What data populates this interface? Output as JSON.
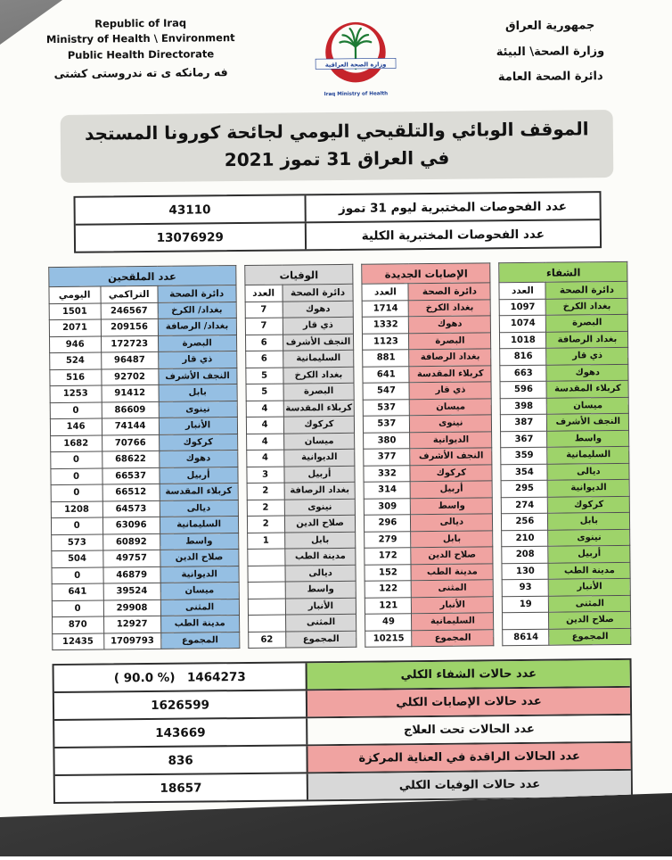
{
  "colors": {
    "green": "#9ed36a",
    "pink": "#f0a3a1",
    "gray": "#d8d8d8",
    "blue": "#95bfe3",
    "white": "#fcfcf9"
  },
  "header": {
    "left": {
      "lines": [
        "Republic of Iraq",
        "Ministry of Health \\ Environment",
        "Public Health Directorate"
      ],
      "kurdish": "فه رمانكه ى ته ندروستى كشتى"
    },
    "logo": {
      "arabic": "وزارة الصحة العراقية",
      "english": "Iraq Ministry of Health"
    },
    "right": {
      "lines": [
        "جمهورية العراق",
        "وزارة الصحة\\ البيئة",
        "دائرة الصحة العامة"
      ]
    }
  },
  "title": {
    "line1": "الموقف الوبائي والتلقيحي اليومي لجائحة كورونا المستجد",
    "line2": "في العراق 31  تموز 2021"
  },
  "tests": [
    {
      "label": "عدد الفحوصات المختبرية  ليوم 31 تموز",
      "value": "43110"
    },
    {
      "label": "عدد الفحوصات المختبرية الكلية",
      "value": "13076929"
    }
  ],
  "tables": {
    "recovery": {
      "title": "الشفاء",
      "name_header": "دائرة الصحة",
      "value_header": "العدد",
      "rows": [
        [
          "بغداد الكرخ",
          "1097"
        ],
        [
          "البصرة",
          "1074"
        ],
        [
          "بغداد الرصافة",
          "1018"
        ],
        [
          "ذي قار",
          "816"
        ],
        [
          "دهوك",
          "663"
        ],
        [
          "كربلاء المقدسة",
          "596"
        ],
        [
          "ميسان",
          "398"
        ],
        [
          "النجف الأشرف",
          "387"
        ],
        [
          "واسط",
          "367"
        ],
        [
          "السليمانية",
          "359"
        ],
        [
          "ديالى",
          "354"
        ],
        [
          "الديوانية",
          "295"
        ],
        [
          "كركوك",
          "274"
        ],
        [
          "بابل",
          "256"
        ],
        [
          "نينوى",
          "210"
        ],
        [
          "أربيل",
          "208"
        ],
        [
          "مدينة الطب",
          "130"
        ],
        [
          "الأنبار",
          "93"
        ],
        [
          "المثنى",
          "19"
        ],
        [
          "صلاح الدين",
          ""
        ]
      ],
      "total": [
        "المجموع",
        "8614"
      ]
    },
    "infections": {
      "title": "الإصابات الجديدة",
      "name_header": "دائرة الصحة",
      "value_header": "العدد",
      "rows": [
        [
          "بغداد الكرخ",
          "1714"
        ],
        [
          "دهوك",
          "1332"
        ],
        [
          "البصرة",
          "1123"
        ],
        [
          "بغداد الرصافة",
          "881"
        ],
        [
          "كربلاء المقدسة",
          "641"
        ],
        [
          "ذي قار",
          "547"
        ],
        [
          "ميسان",
          "537"
        ],
        [
          "نينوى",
          "537"
        ],
        [
          "الديوانية",
          "380"
        ],
        [
          "النجف الأشرف",
          "377"
        ],
        [
          "كركوك",
          "332"
        ],
        [
          "أربيل",
          "314"
        ],
        [
          "واسط",
          "309"
        ],
        [
          "ديالى",
          "296"
        ],
        [
          "بابل",
          "279"
        ],
        [
          "صلاح الدين",
          "172"
        ],
        [
          "مدينة الطب",
          "152"
        ],
        [
          "المثنى",
          "122"
        ],
        [
          "الأنبار",
          "121"
        ],
        [
          "السليمانية",
          "49"
        ]
      ],
      "total": [
        "المجموع",
        "10215"
      ]
    },
    "deaths": {
      "title": "الوفيات",
      "name_header": "دائرة الصحة",
      "value_header": "العدد",
      "rows": [
        [
          "دهوك",
          "7"
        ],
        [
          "ذي قار",
          "7"
        ],
        [
          "النجف الأشرف",
          "6"
        ],
        [
          "السليمانية",
          "6"
        ],
        [
          "بغداد الكرخ",
          "5"
        ],
        [
          "البصرة",
          "5"
        ],
        [
          "كربلاء المقدسة",
          "4"
        ],
        [
          "كركوك",
          "4"
        ],
        [
          "ميسان",
          "4"
        ],
        [
          "الديوانية",
          "4"
        ],
        [
          "أربيل",
          "3"
        ],
        [
          "بغداد الرصافة",
          "2"
        ],
        [
          "نينوى",
          "2"
        ],
        [
          "صلاح الدين",
          "2"
        ],
        [
          "بابل",
          "1"
        ],
        [
          "مدينة الطب",
          ""
        ],
        [
          "ديالى",
          ""
        ],
        [
          "واسط",
          ""
        ],
        [
          "الأنبار",
          ""
        ],
        [
          "المثنى",
          ""
        ]
      ],
      "total": [
        "المجموع",
        "62"
      ]
    },
    "vaccinated": {
      "title": "عدد الملقحين",
      "name_header": "دائرة الصحة",
      "cumulative_header": "التراكمي",
      "daily_header": "اليومي",
      "rows": [
        [
          "بغداد/ الكرخ",
          "246567",
          "1501"
        ],
        [
          "بغداد/ الرصافة",
          "209156",
          "2071"
        ],
        [
          "البصرة",
          "172723",
          "946"
        ],
        [
          "ذي قار",
          "96487",
          "524"
        ],
        [
          "النجف الأشرف",
          "92702",
          "516"
        ],
        [
          "بابل",
          "91412",
          "1253"
        ],
        [
          "نينوى",
          "86609",
          "0"
        ],
        [
          "الأنبار",
          "74144",
          "146"
        ],
        [
          "كركوك",
          "70766",
          "1682"
        ],
        [
          "دهوك",
          "68622",
          "0"
        ],
        [
          "أربيل",
          "66537",
          "0"
        ],
        [
          "كربلاء المقدسة",
          "66512",
          "0"
        ],
        [
          "ديالى",
          "64573",
          "1208"
        ],
        [
          "السليمانية",
          "63096",
          "0"
        ],
        [
          "واسط",
          "60892",
          "573"
        ],
        [
          "صلاح الدين",
          "49757",
          "504"
        ],
        [
          "الديوانية",
          "46879",
          "0"
        ],
        [
          "ميسان",
          "39524",
          "641"
        ],
        [
          "المثنى",
          "29908",
          "0"
        ],
        [
          "مدينة الطب",
          "12927",
          "870"
        ]
      ],
      "total": [
        "المجموع",
        "1709793",
        "12435"
      ]
    }
  },
  "summary": [
    {
      "label": "عدد حالات الشفاء الكلي",
      "note": "( 90.0 %)",
      "value": "1464273",
      "theme": "green"
    },
    {
      "label": "عدد حالات الإصابات الكلي",
      "note": "",
      "value": "1626599",
      "theme": "pink"
    },
    {
      "label": "عدد الحالات تحت العلاج",
      "note": "",
      "value": "143669",
      "theme": "white"
    },
    {
      "label": "عدد الحالات الراقدة في العناية المركزة",
      "note": "",
      "value": "836",
      "theme": "pink"
    },
    {
      "label": "عدد حالات الوفيات الكلي",
      "note": "",
      "value": "18657",
      "theme": "gray"
    }
  ]
}
